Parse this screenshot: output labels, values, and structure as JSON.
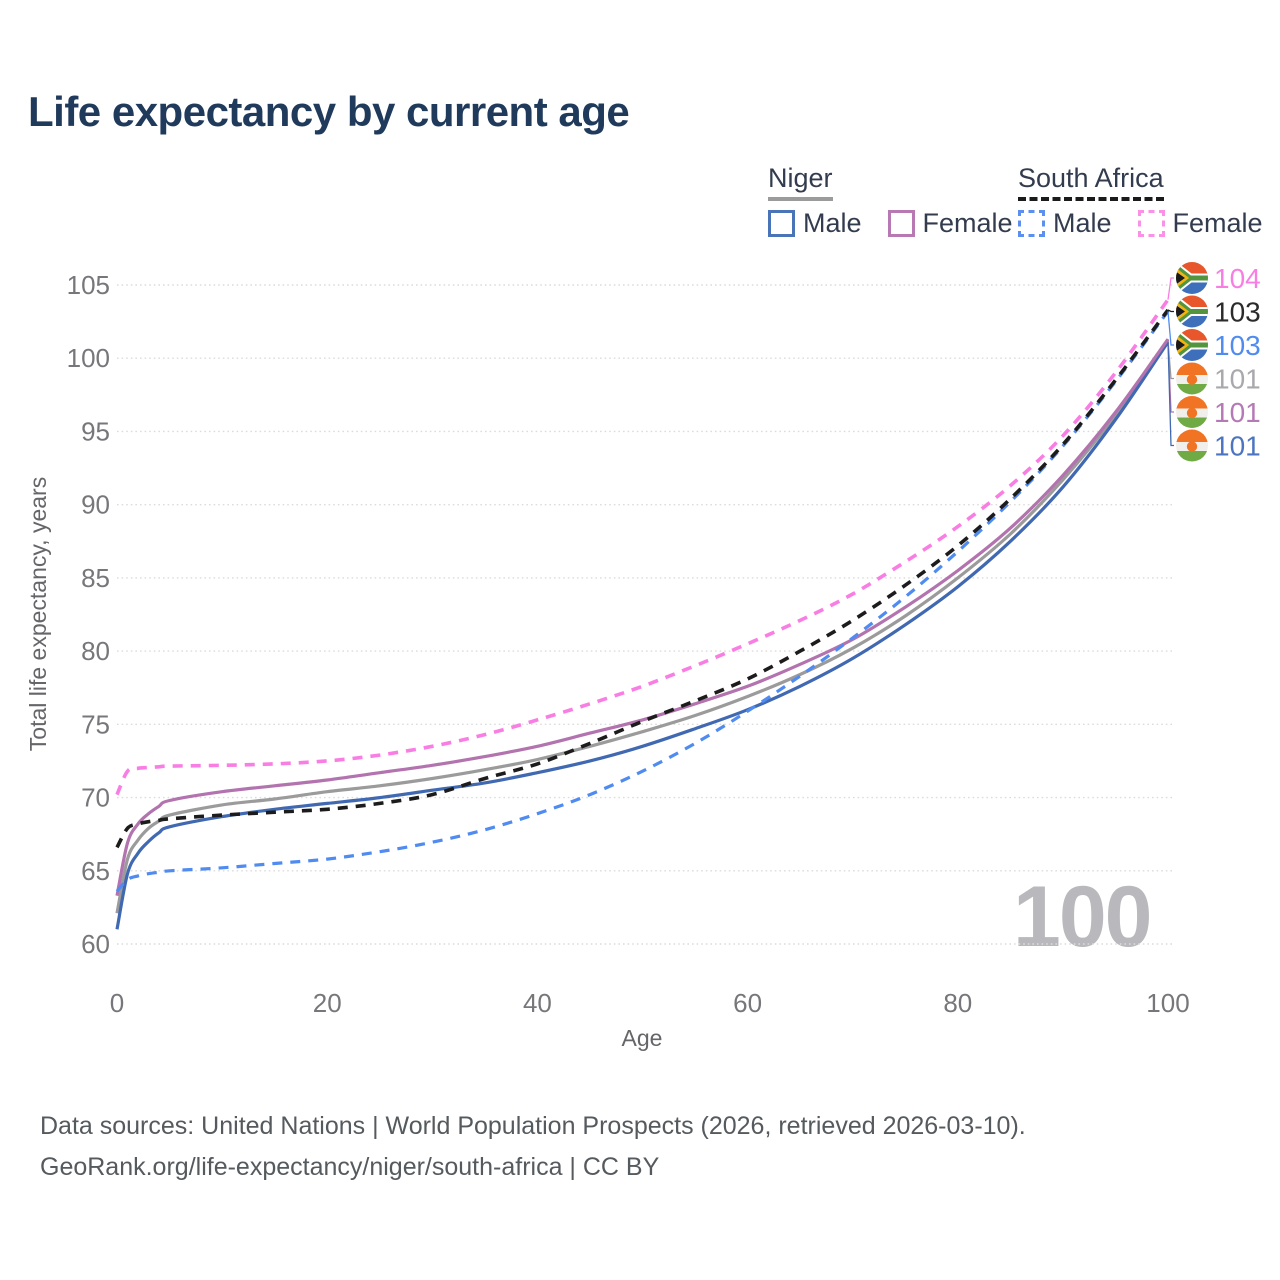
{
  "page": {
    "title": "Life expectancy by current age",
    "background": "#ffffff"
  },
  "legend": {
    "groups": [
      {
        "name": "Niger",
        "color": "#9b9b9b",
        "dash": "solid",
        "items": [
          {
            "label": "Male",
            "color": "#4a74b8",
            "dash": "solid"
          },
          {
            "label": "Female",
            "color": "#b778b3",
            "dash": "solid"
          }
        ]
      },
      {
        "name": "South Africa",
        "color": "#1b1b1b",
        "dash": "dashed",
        "items": [
          {
            "label": "Male",
            "color": "#5b8ff2",
            "dash": "dashed"
          },
          {
            "label": "Female",
            "color": "#fb90e6",
            "dash": "dashed"
          }
        ]
      }
    ]
  },
  "chart_data": {
    "type": "line",
    "title": "Life expectancy by current age",
    "xlabel": "Age",
    "ylabel": "Total life expectancy, years",
    "xlim": [
      0,
      100
    ],
    "ylim": [
      60,
      105
    ],
    "x_ticks": [
      0,
      20,
      40,
      60,
      80,
      100
    ],
    "y_ticks": [
      60,
      65,
      70,
      75,
      80,
      85,
      90,
      95,
      100,
      105
    ],
    "grid": "horizontal-dotted",
    "legend_position": "top-right",
    "hover_age_watermark": "100",
    "x": [
      0,
      1,
      2,
      3,
      4,
      5,
      10,
      15,
      20,
      25,
      30,
      35,
      40,
      45,
      50,
      55,
      60,
      65,
      70,
      75,
      80,
      85,
      90,
      95,
      100
    ],
    "series": [
      {
        "name": "South Africa Female",
        "country": "South Africa",
        "sex": "Female",
        "color": "#f97ee3",
        "label_color": "#f97ee3",
        "dash": "dashed",
        "width": 3.6,
        "end_label": "104",
        "flag": "south-africa",
        "values": [
          70.2,
          71.8,
          72.0,
          72.05,
          72.1,
          72.15,
          72.2,
          72.3,
          72.5,
          72.9,
          73.5,
          74.3,
          75.3,
          76.4,
          77.6,
          79.0,
          80.5,
          82.1,
          83.9,
          86.1,
          88.5,
          91.3,
          94.7,
          99.0,
          104.0
        ]
      },
      {
        "name": "South Africa",
        "country": "South Africa",
        "sex": "Total",
        "color": "#1c1c1c",
        "label_color": "#2b2b2b",
        "dash": "dashed",
        "width": 3.6,
        "end_label": "103",
        "flag": "south-africa",
        "values": [
          66.6,
          67.9,
          68.2,
          68.35,
          68.45,
          68.55,
          68.8,
          69.0,
          69.2,
          69.6,
          70.2,
          71.3,
          72.3,
          73.7,
          75.2,
          76.6,
          78.1,
          80.0,
          82.1,
          84.5,
          87.2,
          90.4,
          94.1,
          98.5,
          103.3
        ]
      },
      {
        "name": "South Africa Male",
        "country": "South Africa",
        "sex": "Male",
        "color": "#4f8bf0",
        "label_color": "#4f8bf0",
        "dash": "dashed",
        "width": 3.2,
        "end_label": "103",
        "flag": "south-africa",
        "values": [
          63.6,
          64.4,
          64.65,
          64.8,
          64.9,
          65.0,
          65.2,
          65.5,
          65.8,
          66.3,
          66.95,
          67.8,
          68.9,
          70.2,
          71.8,
          73.7,
          75.9,
          78.3,
          80.9,
          83.7,
          86.8,
          90.2,
          94.0,
          98.4,
          103.2
        ]
      },
      {
        "name": "Niger",
        "country": "Niger",
        "sex": "Total",
        "color": "#9b9b9b",
        "label_color": "#a9a9ad",
        "dash": "solid",
        "width": 3.2,
        "end_label": "101",
        "flag": "niger",
        "values": [
          62.1,
          65.8,
          67.1,
          67.9,
          68.4,
          68.8,
          69.5,
          69.9,
          70.4,
          70.8,
          71.3,
          71.9,
          72.6,
          73.5,
          74.5,
          75.6,
          76.9,
          78.4,
          80.2,
          82.4,
          85.0,
          88.0,
          91.7,
          96.1,
          101.2
        ]
      },
      {
        "name": "Niger Female",
        "country": "Niger",
        "sex": "Female",
        "color": "#b273ae",
        "label_color": "#b57ab5",
        "dash": "solid",
        "width": 3.2,
        "end_label": "101",
        "flag": "niger",
        "values": [
          63.3,
          66.9,
          68.2,
          68.9,
          69.4,
          69.8,
          70.4,
          70.8,
          71.2,
          71.7,
          72.2,
          72.8,
          73.5,
          74.4,
          75.3,
          76.4,
          77.6,
          79.1,
          80.8,
          83.0,
          85.5,
          88.4,
          92.0,
          96.3,
          101.3
        ]
      },
      {
        "name": "Niger Male",
        "country": "Niger",
        "sex": "Male",
        "color": "#4069b1",
        "label_color": "#4c74c0",
        "dash": "solid",
        "width": 3.2,
        "end_label": "101",
        "flag": "niger",
        "values": [
          61.0,
          64.8,
          66.2,
          67.0,
          67.6,
          68.0,
          68.7,
          69.2,
          69.6,
          70.0,
          70.5,
          71.0,
          71.7,
          72.5,
          73.5,
          74.7,
          76.0,
          77.6,
          79.5,
          81.8,
          84.4,
          87.5,
          91.2,
          95.8,
          101.1
        ]
      }
    ]
  },
  "watermark": "100",
  "footer": {
    "line1": "Data sources: United Nations | World Population Prospects (2026, retrieved 2026-03-10).",
    "line2": "GeoRank.org/life-expectancy/niger/south-africa | CC BY"
  }
}
